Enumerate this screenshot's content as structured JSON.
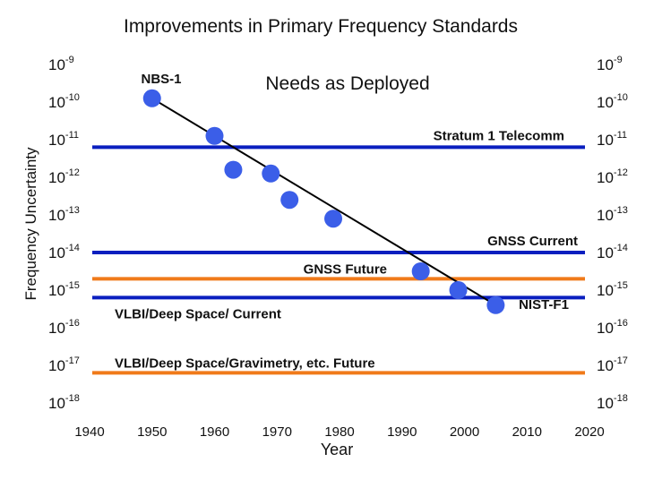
{
  "chart_data": {
    "type": "scatter",
    "title": "Improvements in Primary Frequency Standards",
    "xlabel": "Year",
    "ylabel": "Frequency Uncertainty",
    "xlim": [
      1940,
      2020
    ],
    "ylim_exponent": [
      -18,
      -9
    ],
    "y_scale": "log10",
    "x_ticks": [
      1940,
      1950,
      1960,
      1970,
      1980,
      1990,
      2000,
      2010,
      2020
    ],
    "x_tick_labels": [
      "1940",
      "1950",
      "1960",
      "1970",
      "1980",
      "1990",
      "2000",
      "2010",
      "2020"
    ],
    "y_tick_base": "10",
    "y_tick_exponents": [
      "-9",
      "-10",
      "-11",
      "-12",
      "-13",
      "-14",
      "-15",
      "-16",
      "-17",
      "-18"
    ],
    "y_tick_values": [
      -9,
      -10,
      -11,
      -12,
      -13,
      -14,
      -15,
      -16,
      -17,
      -18
    ],
    "points": [
      {
        "year": 1950,
        "log_uncertainty": -9.9
      },
      {
        "year": 1960,
        "log_uncertainty": -10.9
      },
      {
        "year": 1963,
        "log_uncertainty": -11.8
      },
      {
        "year": 1969,
        "log_uncertainty": -11.9
      },
      {
        "year": 1972,
        "log_uncertainty": -12.6
      },
      {
        "year": 1979,
        "log_uncertainty": -13.1
      },
      {
        "year": 1993,
        "log_uncertainty": -14.5
      },
      {
        "year": 1999,
        "log_uncertainty": -15.0
      },
      {
        "year": 2005,
        "log_uncertainty": -15.4
      }
    ],
    "trend_line": {
      "from": {
        "year": 1950,
        "log_uncertainty": -9.9
      },
      "to": {
        "year": 2005,
        "log_uncertainty": -15.4
      }
    },
    "reference_lines": [
      {
        "name": "Stratum 1 Telecomm",
        "log_uncertainty": -11.2,
        "color": "#0a1fbf"
      },
      {
        "name": "GNSS Current",
        "log_uncertainty": -14.0,
        "color": "#0a1fbf"
      },
      {
        "name": "GNSS Future",
        "log_uncertainty": -14.7,
        "color": "#f07a1a"
      },
      {
        "name": "VLBI/Deep Space/ Current",
        "log_uncertainty": -15.2,
        "color": "#0a1fbf"
      },
      {
        "name": "VLBI/Deep Space/Gravimetry, etc. Future",
        "log_uncertainty": -17.2,
        "color": "#f07a1a"
      }
    ],
    "annotations": {
      "nbs1": "NBS-1",
      "nist_f1": "NIST-F1",
      "needs_title": "Needs as Deployed"
    },
    "colors": {
      "point": "#3b5ee8",
      "trend": "#000000",
      "text": "#111111"
    }
  }
}
